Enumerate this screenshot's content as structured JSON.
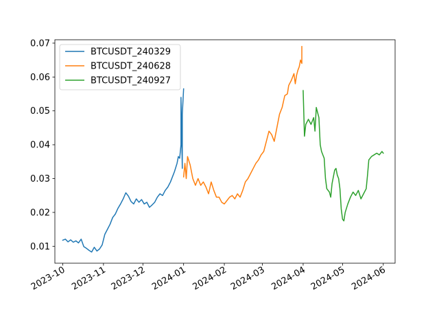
{
  "chart_data": {
    "type": "line",
    "title": "",
    "xlabel": "",
    "ylabel": "",
    "xlim": [
      "2023-09-25",
      "2024-06-10"
    ],
    "ylim": [
      0.005,
      0.071
    ],
    "x_ticks": [
      "2023-10",
      "2023-11",
      "2023-12",
      "2024-01",
      "2024-02",
      "2024-03",
      "2024-04",
      "2024-05",
      "2024-06"
    ],
    "x_tick_dates": [
      "2023-10-01",
      "2023-11-01",
      "2023-12-01",
      "2024-01-01",
      "2024-02-01",
      "2024-03-01",
      "2024-04-01",
      "2024-05-01",
      "2024-06-01"
    ],
    "y_ticks": [
      "0.01",
      "0.02",
      "0.03",
      "0.04",
      "0.05",
      "0.06",
      "0.07"
    ],
    "y_tick_values": [
      0.01,
      0.02,
      0.03,
      0.04,
      0.05,
      0.06,
      0.07
    ],
    "grid": false,
    "legend": "top-left",
    "series": [
      {
        "name": "BTCUSDT_240329",
        "color": "#1f77b4",
        "points": [
          [
            "2023-10-01",
            0.0118
          ],
          [
            "2023-10-03",
            0.0121
          ],
          [
            "2023-10-05",
            0.0113
          ],
          [
            "2023-10-07",
            0.0119
          ],
          [
            "2023-10-09",
            0.0112
          ],
          [
            "2023-10-11",
            0.0116
          ],
          [
            "2023-10-13",
            0.011
          ],
          [
            "2023-10-15",
            0.0121
          ],
          [
            "2023-10-17",
            0.0099
          ],
          [
            "2023-10-19",
            0.0094
          ],
          [
            "2023-10-21",
            0.0088
          ],
          [
            "2023-10-23",
            0.0083
          ],
          [
            "2023-10-25",
            0.0097
          ],
          [
            "2023-10-27",
            0.0086
          ],
          [
            "2023-10-29",
            0.0092
          ],
          [
            "2023-10-31",
            0.0104
          ],
          [
            "2023-11-02",
            0.0135
          ],
          [
            "2023-11-04",
            0.015
          ],
          [
            "2023-11-06",
            0.0165
          ],
          [
            "2023-11-08",
            0.0185
          ],
          [
            "2023-11-10",
            0.0195
          ],
          [
            "2023-11-12",
            0.0212
          ],
          [
            "2023-11-14",
            0.0225
          ],
          [
            "2023-11-16",
            0.024
          ],
          [
            "2023-11-18",
            0.0258
          ],
          [
            "2023-11-20",
            0.0248
          ],
          [
            "2023-11-22",
            0.0232
          ],
          [
            "2023-11-24",
            0.0225
          ],
          [
            "2023-11-26",
            0.024
          ],
          [
            "2023-11-28",
            0.023
          ],
          [
            "2023-11-30",
            0.0238
          ],
          [
            "2023-12-02",
            0.0225
          ],
          [
            "2023-12-04",
            0.023
          ],
          [
            "2023-12-06",
            0.0215
          ],
          [
            "2023-12-08",
            0.0222
          ],
          [
            "2023-12-10",
            0.023
          ],
          [
            "2023-12-12",
            0.0245
          ],
          [
            "2023-12-14",
            0.0255
          ],
          [
            "2023-12-16",
            0.025
          ],
          [
            "2023-12-18",
            0.0265
          ],
          [
            "2023-12-20",
            0.0275
          ],
          [
            "2023-12-22",
            0.029
          ],
          [
            "2023-12-24",
            0.031
          ],
          [
            "2023-12-25",
            0.032
          ],
          [
            "2023-12-27",
            0.0345
          ],
          [
            "2023-12-28",
            0.0365
          ],
          [
            "2023-12-29",
            0.036
          ],
          [
            "2023-12-30",
            0.04
          ],
          [
            "2023-12-30",
            0.054
          ],
          [
            "2023-12-31",
            0.033
          ],
          [
            "2023-12-31",
            0.049
          ],
          [
            "2024-01-01",
            0.0565
          ]
        ]
      },
      {
        "name": "BTCUSDT_240628",
        "color": "#ff7f0e",
        "points": [
          [
            "2024-01-01",
            0.0305
          ],
          [
            "2024-01-02",
            0.0345
          ],
          [
            "2024-01-03",
            0.03
          ],
          [
            "2024-01-04",
            0.0365
          ],
          [
            "2024-01-06",
            0.034
          ],
          [
            "2024-01-08",
            0.03
          ],
          [
            "2024-01-10",
            0.028
          ],
          [
            "2024-01-12",
            0.03
          ],
          [
            "2024-01-14",
            0.028
          ],
          [
            "2024-01-16",
            0.029
          ],
          [
            "2024-01-18",
            0.0275
          ],
          [
            "2024-01-20",
            0.0255
          ],
          [
            "2024-01-22",
            0.029
          ],
          [
            "2024-01-24",
            0.0265
          ],
          [
            "2024-01-26",
            0.0245
          ],
          [
            "2024-01-28",
            0.0245
          ],
          [
            "2024-01-30",
            0.023
          ],
          [
            "2024-02-01",
            0.0225
          ],
          [
            "2024-02-03",
            0.0235
          ],
          [
            "2024-02-05",
            0.0245
          ],
          [
            "2024-02-07",
            0.025
          ],
          [
            "2024-02-09",
            0.024
          ],
          [
            "2024-02-11",
            0.0255
          ],
          [
            "2024-02-13",
            0.0245
          ],
          [
            "2024-02-15",
            0.0265
          ],
          [
            "2024-02-17",
            0.029
          ],
          [
            "2024-02-19",
            0.03
          ],
          [
            "2024-02-21",
            0.0315
          ],
          [
            "2024-02-23",
            0.033
          ],
          [
            "2024-02-25",
            0.0345
          ],
          [
            "2024-02-27",
            0.0355
          ],
          [
            "2024-02-29",
            0.037
          ],
          [
            "2024-03-02",
            0.038
          ],
          [
            "2024-03-04",
            0.041
          ],
          [
            "2024-03-06",
            0.044
          ],
          [
            "2024-03-08",
            0.043
          ],
          [
            "2024-03-10",
            0.041
          ],
          [
            "2024-03-12",
            0.045
          ],
          [
            "2024-03-14",
            0.049
          ],
          [
            "2024-03-16",
            0.051
          ],
          [
            "2024-03-18",
            0.0545
          ],
          [
            "2024-03-20",
            0.055
          ],
          [
            "2024-03-21",
            0.0575
          ],
          [
            "2024-03-23",
            0.059
          ],
          [
            "2024-03-25",
            0.061
          ],
          [
            "2024-03-26",
            0.058
          ],
          [
            "2024-03-27",
            0.0605
          ],
          [
            "2024-03-28",
            0.062
          ],
          [
            "2024-03-29",
            0.063
          ],
          [
            "2024-03-30",
            0.065
          ],
          [
            "2024-03-31",
            0.064
          ],
          [
            "2024-03-31",
            0.069
          ]
        ]
      },
      {
        "name": "BTCUSDT_240927",
        "color": "#2ca02c",
        "points": [
          [
            "2024-04-01",
            0.056
          ],
          [
            "2024-04-02",
            0.0425
          ],
          [
            "2024-04-03",
            0.046
          ],
          [
            "2024-04-05",
            0.0475
          ],
          [
            "2024-04-07",
            0.046
          ],
          [
            "2024-04-09",
            0.048
          ],
          [
            "2024-04-10",
            0.044
          ],
          [
            "2024-04-11",
            0.051
          ],
          [
            "2024-04-13",
            0.048
          ],
          [
            "2024-04-14",
            0.04
          ],
          [
            "2024-04-15",
            0.038
          ],
          [
            "2024-04-17",
            0.036
          ],
          [
            "2024-04-18",
            0.03
          ],
          [
            "2024-04-19",
            0.027
          ],
          [
            "2024-04-21",
            0.026
          ],
          [
            "2024-04-22",
            0.0245
          ],
          [
            "2024-04-23",
            0.0285
          ],
          [
            "2024-04-25",
            0.0325
          ],
          [
            "2024-04-26",
            0.033
          ],
          [
            "2024-04-27",
            0.031
          ],
          [
            "2024-04-28",
            0.03
          ],
          [
            "2024-04-29",
            0.027
          ],
          [
            "2024-04-30",
            0.021
          ],
          [
            "2024-05-01",
            0.018
          ],
          [
            "2024-05-02",
            0.0175
          ],
          [
            "2024-05-03",
            0.02
          ],
          [
            "2024-05-05",
            0.0225
          ],
          [
            "2024-05-07",
            0.0245
          ],
          [
            "2024-05-09",
            0.026
          ],
          [
            "2024-05-11",
            0.025
          ],
          [
            "2024-05-13",
            0.0265
          ],
          [
            "2024-05-15",
            0.024
          ],
          [
            "2024-05-17",
            0.0255
          ],
          [
            "2024-05-19",
            0.027
          ],
          [
            "2024-05-20",
            0.031
          ],
          [
            "2024-05-21",
            0.0355
          ],
          [
            "2024-05-23",
            0.0365
          ],
          [
            "2024-05-25",
            0.037
          ],
          [
            "2024-05-27",
            0.0375
          ],
          [
            "2024-05-29",
            0.037
          ],
          [
            "2024-05-31",
            0.038
          ],
          [
            "2024-06-01",
            0.0375
          ]
        ]
      }
    ]
  }
}
